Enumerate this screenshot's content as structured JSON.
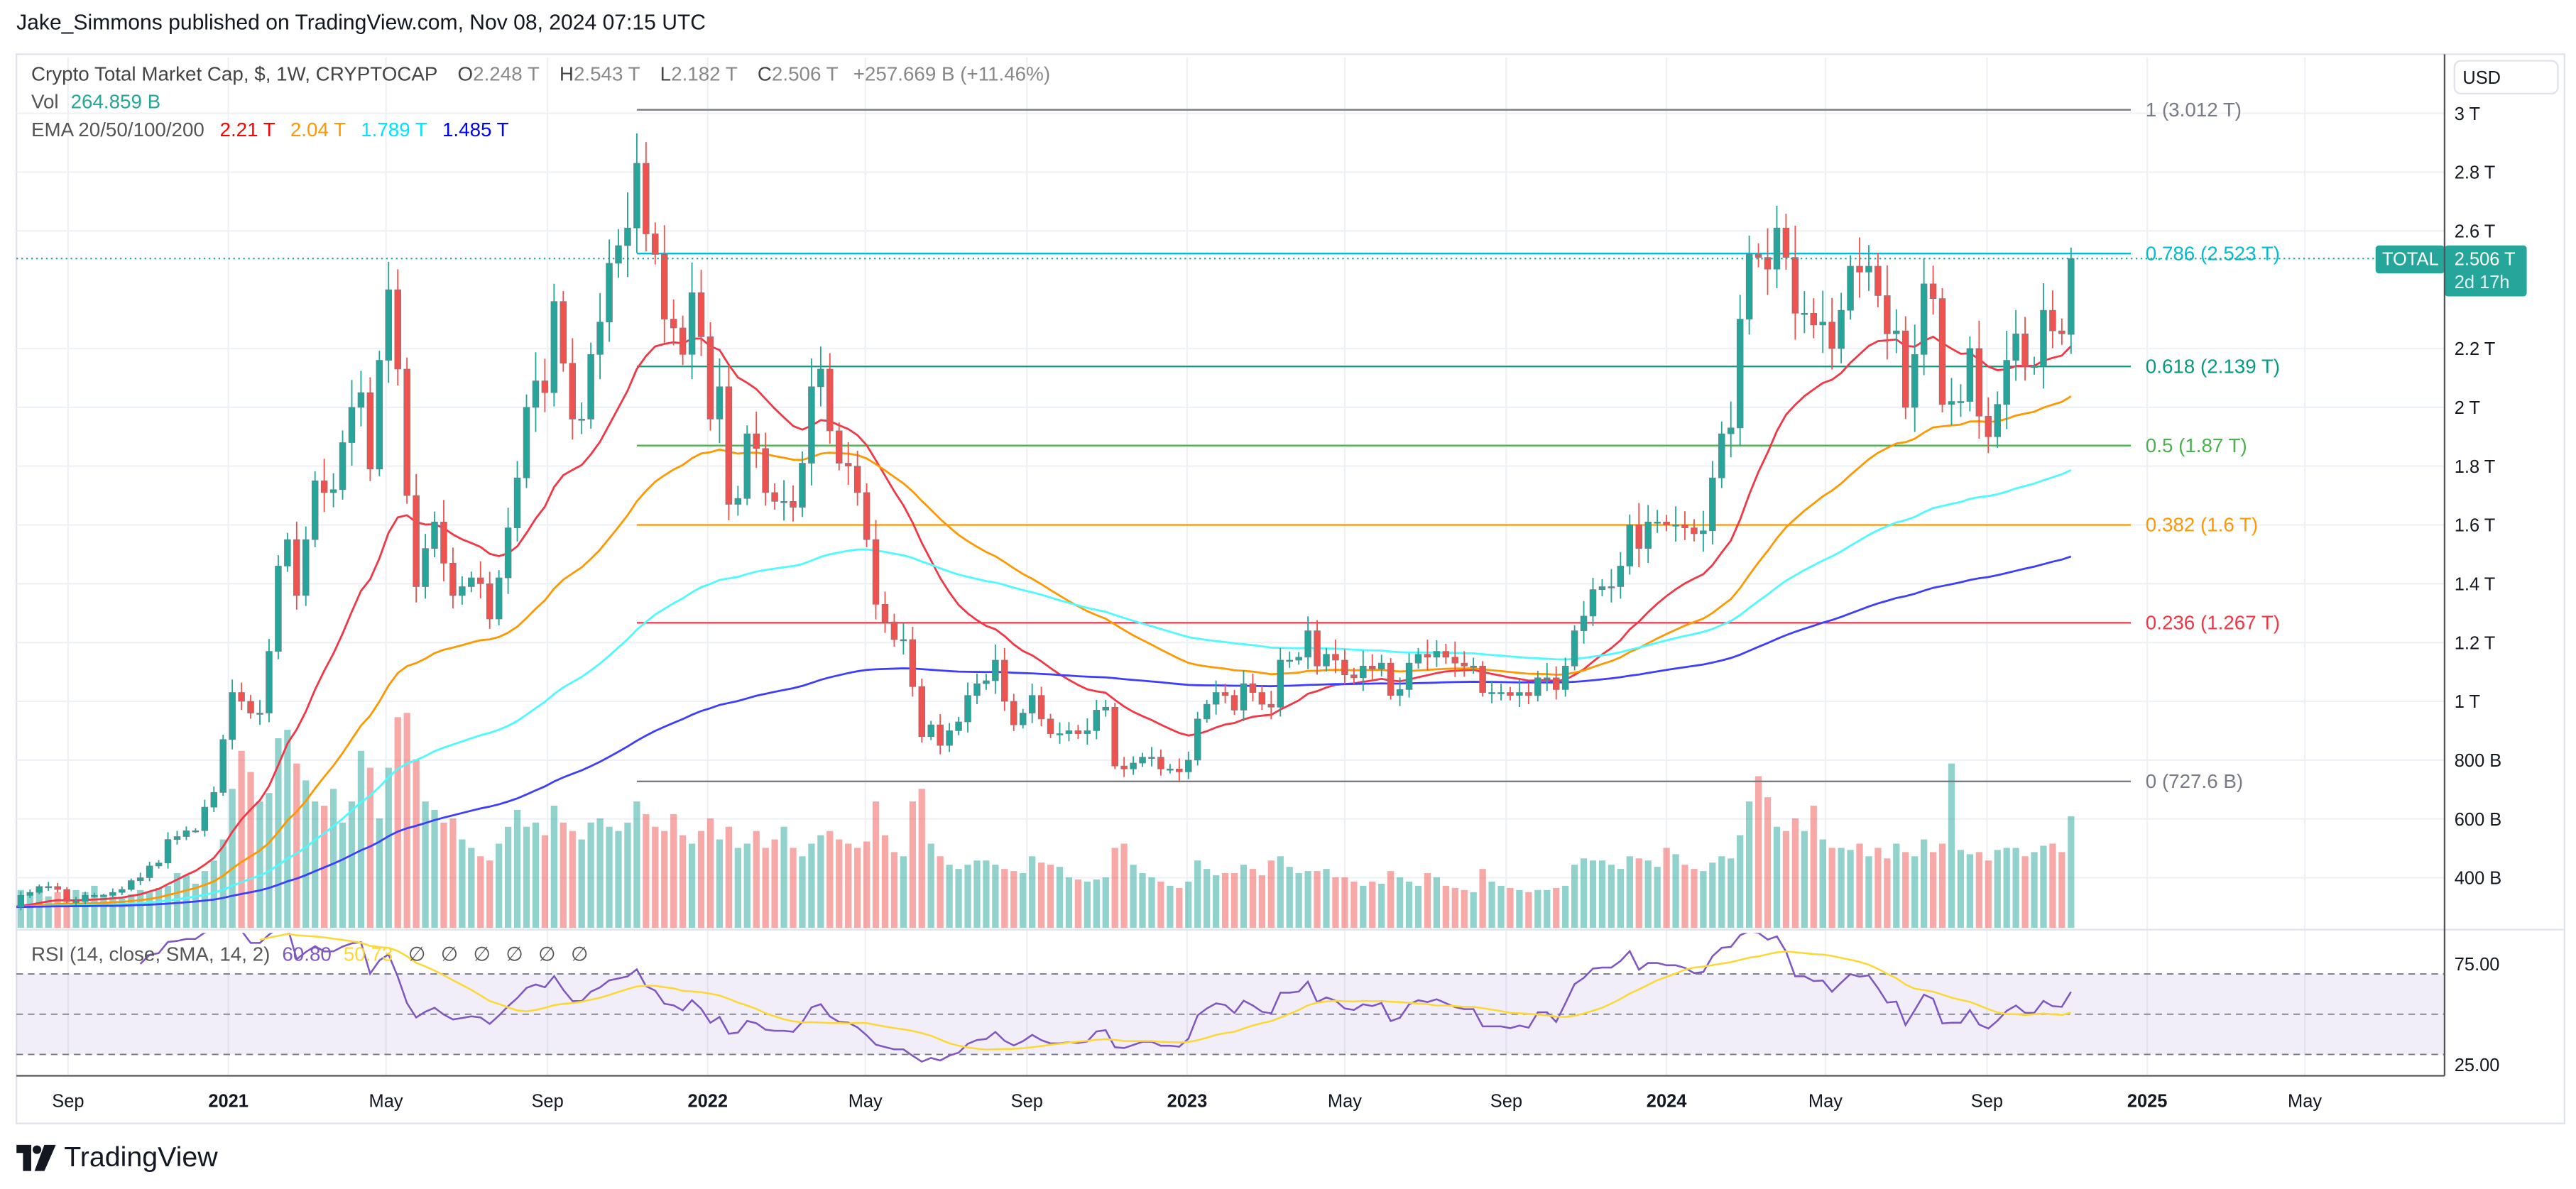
{
  "header": {
    "published": "Jake_Simmons published on TradingView.com, Nov 08, 2024 07:15 UTC"
  },
  "legend": {
    "symbol": "Crypto Total Market Cap, $, 1W, CRYPTOCAP",
    "o_label": "O",
    "o": "2.248 T",
    "h_label": "H",
    "h": "2.543 T",
    "l_label": "L",
    "l": "2.182 T",
    "c_label": "C",
    "c": "2.506 T",
    "change": "+257.669 B (+11.46%)",
    "vol_label": "Vol",
    "vol": "264.859 B",
    "ema_label": "EMA 20/50/100/200",
    "ema20": "2.21 T",
    "ema50": "2.04 T",
    "ema100": "1.789 T",
    "ema200": "1.485 T"
  },
  "price_axis": {
    "currency": "USD",
    "labels": [
      {
        "text": "3 T",
        "value": 3.0
      },
      {
        "text": "2.8 T",
        "value": 2.8
      },
      {
        "text": "2.6 T",
        "value": 2.6
      },
      {
        "text": "2.2 T",
        "value": 2.2
      },
      {
        "text": "2 T",
        "value": 2.0
      },
      {
        "text": "1.8 T",
        "value": 1.8
      },
      {
        "text": "1.6 T",
        "value": 1.6
      },
      {
        "text": "1.4 T",
        "value": 1.4
      },
      {
        "text": "1.2 T",
        "value": 1.2
      },
      {
        "text": "1 T",
        "value": 1.0
      },
      {
        "text": "800 B",
        "value": 0.8
      },
      {
        "text": "600 B",
        "value": 0.6
      },
      {
        "text": "400 B",
        "value": 0.4
      }
    ],
    "last_tag": {
      "symbol": "TOTAL",
      "price": "2.506 T",
      "countdown": "2d 17h",
      "value": 2.506
    }
  },
  "time_axis": [
    {
      "text": "Sep",
      "date": "2020-09-01",
      "bold": false
    },
    {
      "text": "2021",
      "date": "2021-01-01",
      "bold": true
    },
    {
      "text": "May",
      "date": "2021-05-01",
      "bold": false
    },
    {
      "text": "Sep",
      "date": "2021-09-01",
      "bold": false
    },
    {
      "text": "2022",
      "date": "2022-01-01",
      "bold": true
    },
    {
      "text": "May",
      "date": "2022-05-01",
      "bold": false
    },
    {
      "text": "Sep",
      "date": "2022-09-01",
      "bold": false
    },
    {
      "text": "2023",
      "date": "2023-01-01",
      "bold": true
    },
    {
      "text": "May",
      "date": "2023-05-01",
      "bold": false
    },
    {
      "text": "Sep",
      "date": "2023-09-01",
      "bold": false
    },
    {
      "text": "2024",
      "date": "2024-01-01",
      "bold": true
    },
    {
      "text": "May",
      "date": "2024-05-01",
      "bold": false
    },
    {
      "text": "Sep",
      "date": "2024-09-01",
      "bold": false
    },
    {
      "text": "2025",
      "date": "2025-01-01",
      "bold": true
    },
    {
      "text": "May",
      "date": "2025-05-01",
      "bold": false
    }
  ],
  "fib": {
    "anchor_date": "2021-11-08",
    "levels": [
      {
        "label": "1 (3.012 T)",
        "value": 3.012,
        "color": "#787b86"
      },
      {
        "label": "0.786 (2.523 T)",
        "value": 2.523,
        "color": "#00bcd4"
      },
      {
        "label": "0.618 (2.139 T)",
        "value": 2.139,
        "color": "#089981"
      },
      {
        "label": "0.5 (1.87 T)",
        "value": 1.87,
        "color": "#4caf50"
      },
      {
        "label": "0.382 (1.6 T)",
        "value": 1.6,
        "color": "#ff9800"
      },
      {
        "label": "0.236 (1.267 T)",
        "value": 1.267,
        "color": "#f23645"
      },
      {
        "label": "0 (727.6 B)",
        "value": 0.7276,
        "color": "#787b86"
      }
    ]
  },
  "rsi": {
    "label": "RSI (14, close, SMA, 14, 2)",
    "rsi_value": "60.80",
    "sma_value": "50.73",
    "na": [
      "∅",
      "∅",
      "∅",
      "∅",
      "∅",
      "∅"
    ],
    "axis": [
      {
        "text": "75.00",
        "value": 75
      },
      {
        "text": "25.00",
        "value": 25
      }
    ],
    "upper": 70,
    "middle": 50,
    "lower": 30
  },
  "colors": {
    "up": "#26a69a",
    "down": "#ef5350",
    "ema20": "#f23645",
    "ema50": "#ff9800",
    "ema100": "#4dfaff",
    "ema200": "#3d3dff",
    "rsi": "#7e57c2",
    "rsi_sma": "#fdd835",
    "legend_ema20": "#ff0000",
    "legend_ema50": "#ff9800",
    "legend_ema100": "#00e5ff",
    "legend_ema200": "#0000ff"
  },
  "footer": {
    "brand": "TradingView"
  },
  "chart_data": {
    "type": "candlestick",
    "interval": "1W",
    "unit": "T USD",
    "first_week": "2020-07-20",
    "ema_periods": [
      20,
      50,
      100,
      200
    ],
    "close": [
      0.3,
      0.34,
      0.35,
      0.37,
      0.37,
      0.36,
      0.32,
      0.32,
      0.34,
      0.34,
      0.34,
      0.35,
      0.36,
      0.39,
      0.4,
      0.44,
      0.45,
      0.53,
      0.54,
      0.56,
      0.56,
      0.64,
      0.69,
      0.87,
      1.03,
      1.0,
      0.96,
      0.96,
      1.17,
      1.46,
      1.55,
      1.36,
      1.55,
      1.75,
      1.71,
      1.72,
      1.88,
      2.0,
      2.05,
      1.79,
      2.16,
      2.4,
      2.13,
      1.7,
      1.39,
      1.52,
      1.61,
      1.47,
      1.36,
      1.39,
      1.42,
      1.4,
      1.28,
      1.42,
      1.59,
      1.76,
      2.0,
      2.09,
      2.05,
      2.36,
      2.15,
      1.96,
      1.96,
      2.18,
      2.29,
      2.49,
      2.55,
      2.61,
      2.83,
      2.59,
      2.52,
      2.3,
      2.27,
      2.18,
      2.39,
      2.24,
      1.96,
      2.07,
      1.67,
      1.69,
      1.91,
      1.86,
      1.71,
      1.68,
      1.68,
      1.66,
      1.81,
      2.07,
      2.13,
      1.92,
      1.81,
      1.8,
      1.71,
      1.55,
      1.33,
      1.27,
      1.21,
      1.21,
      1.05,
      0.88,
      0.92,
      0.85,
      0.9,
      0.93,
      1.02,
      1.06,
      1.07,
      1.14,
      1.0,
      0.92,
      0.96,
      1.02,
      0.94,
      0.89,
      0.89,
      0.9,
      0.89,
      0.9,
      0.97,
      0.98,
      0.78,
      0.77,
      0.79,
      0.81,
      0.81,
      0.77,
      0.77,
      0.76,
      0.8,
      0.94,
      0.99,
      1.03,
      1.02,
      0.97,
      1.06,
      1.03,
      0.99,
      0.98,
      1.14,
      1.14,
      1.15,
      1.24,
      1.12,
      1.16,
      1.14,
      1.09,
      1.08,
      1.12,
      1.11,
      1.13,
      1.02,
      1.04,
      1.13,
      1.16,
      1.15,
      1.17,
      1.15,
      1.13,
      1.12,
      1.12,
      1.03,
      1.03,
      1.03,
      1.02,
      1.03,
      1.02,
      1.08,
      1.08,
      1.04,
      1.12,
      1.24,
      1.29,
      1.38,
      1.39,
      1.39,
      1.46,
      1.6,
      1.52,
      1.61,
      1.61,
      1.6,
      1.6,
      1.59,
      1.57,
      1.58,
      1.76,
      1.91,
      1.93,
      2.3,
      2.52,
      2.51,
      2.47,
      2.61,
      2.51,
      2.32,
      2.32,
      2.28,
      2.29,
      2.2,
      2.33,
      2.48,
      2.46,
      2.48,
      2.38,
      2.25,
      2.26,
      2.0,
      2.18,
      2.42,
      2.37,
      2.01,
      2.02,
      2.02,
      2.2,
      1.97,
      1.9,
      2.01,
      2.16,
      2.25,
      2.14,
      2.14,
      2.33,
      2.26,
      2.25,
      2.506
    ],
    "last_open": 2.248,
    "last_high": 2.543,
    "last_low": 2.182,
    "volume_unit": "B",
    "volume": [
      60,
      90,
      80,
      85,
      75,
      85,
      70,
      90,
      85,
      100,
      80,
      75,
      70,
      80,
      90,
      85,
      95,
      100,
      130,
      125,
      105,
      135,
      160,
      210,
      330,
      420,
      370,
      300,
      320,
      450,
      470,
      390,
      350,
      300,
      290,
      330,
      250,
      300,
      420,
      380,
      260,
      380,
      500,
      510,
      400,
      300,
      280,
      250,
      260,
      210,
      190,
      170,
      160,
      200,
      240,
      280,
      240,
      250,
      220,
      290,
      250,
      230,
      210,
      250,
      260,
      240,
      230,
      250,
      300,
      270,
      240,
      230,
      270,
      220,
      200,
      230,
      260,
      210,
      240,
      190,
      200,
      230,
      190,
      210,
      240,
      190,
      170,
      200,
      220,
      230,
      210,
      200,
      190,
      205,
      300,
      220,
      180,
      170,
      300,
      330,
      200,
      170,
      150,
      140,
      150,
      160,
      160,
      150,
      140,
      135,
      130,
      170,
      155,
      150,
      145,
      120,
      115,
      110,
      115,
      120,
      190,
      200,
      150,
      130,
      120,
      110,
      100,
      95,
      110,
      160,
      140,
      125,
      130,
      130,
      150,
      140,
      125,
      160,
      170,
      145,
      130,
      135,
      135,
      140,
      120,
      120,
      110,
      100,
      110,
      105,
      135,
      120,
      110,
      100,
      130,
      120,
      100,
      95,
      90,
      85,
      140,
      110,
      100,
      95,
      90,
      85,
      90,
      90,
      95,
      100,
      150,
      165,
      160,
      160,
      150,
      140,
      170,
      165,
      160,
      145,
      190,
      175,
      150,
      140,
      135,
      155,
      170,
      165,
      220,
      300,
      360,
      310,
      240,
      230,
      260,
      230,
      290,
      210,
      190,
      190,
      185,
      200,
      170,
      190,
      165,
      200,
      180,
      170,
      210,
      180,
      200,
      390,
      185,
      175,
      180,
      160,
      185,
      190,
      190,
      170,
      180,
      195,
      200,
      180,
      264.859
    ]
  }
}
